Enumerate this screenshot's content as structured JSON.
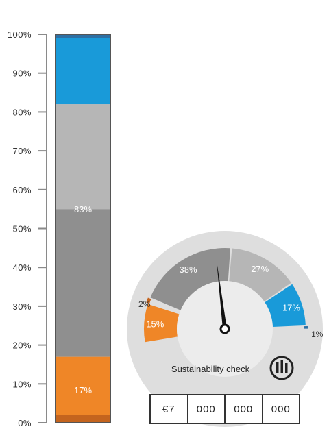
{
  "chart_data": [
    {
      "type": "stacked-bar",
      "ylim": [
        0,
        100
      ],
      "yticks": [
        "0%",
        "10%",
        "20%",
        "30%",
        "40%",
        "50%",
        "60%",
        "70%",
        "80%",
        "90%",
        "100%"
      ],
      "segments": [
        {
          "value": 2,
          "color": "#c4641e",
          "label": ""
        },
        {
          "value": 15,
          "color": "#ef8627",
          "label": "17%"
        },
        {
          "value": 38,
          "color": "#8f8f8f",
          "label": ""
        },
        {
          "value": 27,
          "color": "#b6b6b6",
          "label": "83%"
        },
        {
          "value": 17,
          "color": "#199ad9",
          "label": ""
        },
        {
          "value": 1,
          "color": "#2d6fa3",
          "label": ""
        }
      ],
      "group_labels": [
        {
          "text": "17%",
          "at": 8.5,
          "color": "#ffffff"
        },
        {
          "text": "83%",
          "at": 55,
          "color": "#ffffff"
        }
      ]
    },
    {
      "type": "gauge",
      "title": "Sustainability check",
      "needle_value": 49,
      "segments": [
        {
          "value": 15,
          "label": "15%",
          "color": "#ef8627"
        },
        {
          "value": 2,
          "label": "2%",
          "color": "#c4641e"
        },
        {
          "value": 38,
          "label": "38%",
          "color": "#8f8f8f"
        },
        {
          "value": 27,
          "label": "27%",
          "color": "#b6b6b6"
        },
        {
          "value": 17,
          "label": "17%",
          "color": "#199ad9"
        },
        {
          "value": 1,
          "label": "1%",
          "color": "#2d6fa3"
        }
      ]
    }
  ],
  "counter": {
    "cells": [
      "€7",
      "000",
      "000",
      "000"
    ]
  },
  "colors": {
    "axis": "#8a8a8a",
    "bar_border": "#555555",
    "gauge_bg": "#dedede",
    "gauge_hub": "#ececec"
  },
  "icons": {
    "logo": "allianz-logo-icon"
  }
}
